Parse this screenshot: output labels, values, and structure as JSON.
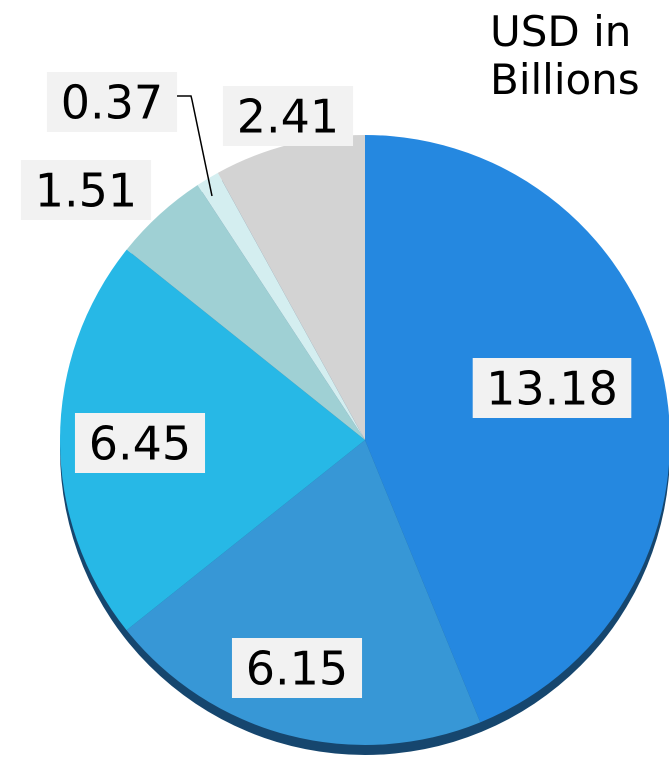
{
  "unit_label": {
    "line1": "USD in",
    "line2": "Billions"
  },
  "chart_data": {
    "type": "pie",
    "start_angle_deg": 0,
    "direction": "clockwise",
    "slices": [
      {
        "label": "13.18",
        "value": 13.18,
        "color": "#2588E0"
      },
      {
        "label": "6.15",
        "value": 6.15,
        "color": "#3797D6"
      },
      {
        "label": "6.45",
        "value": 6.45,
        "color": "#27B8E6"
      },
      {
        "label": "1.51",
        "value": 1.51,
        "color": "#9FD0D4"
      },
      {
        "label": "0.37",
        "value": 0.37,
        "color": "#D4EEF0"
      },
      {
        "label": "2.41",
        "value": 2.41,
        "color": "#D3D3D3"
      }
    ],
    "data_label_background": "#F2F2F2",
    "shadow_color": "#16466E"
  }
}
